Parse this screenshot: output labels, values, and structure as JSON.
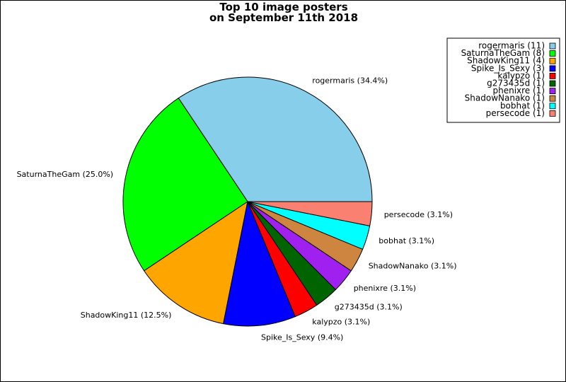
{
  "chart_data": {
    "type": "pie",
    "title": "Top 10 image posters",
    "subtitle": "on September 11th 2018",
    "legend_position": "top-right",
    "start_angle": "0 degrees (3 o'clock), counter-clockwise",
    "slices": [
      {
        "name": "rogermaris",
        "count": 11,
        "percent": 34.4,
        "color": "#87ceeb",
        "label": "rogermaris (34.4%)",
        "legend": "rogermaris (11)"
      },
      {
        "name": "SaturnaTheGam",
        "count": 8,
        "percent": 25.0,
        "color": "#00ff00",
        "label": "SaturnaTheGam (25.0%)",
        "legend": "SaturnaTheGam (8)"
      },
      {
        "name": "ShadowKing11",
        "count": 4,
        "percent": 12.5,
        "color": "#ffa500",
        "label": "ShadowKing11 (12.5%)",
        "legend": "ShadowKing11 (4)"
      },
      {
        "name": "Spike_Is_Sexy",
        "count": 3,
        "percent": 9.4,
        "color": "#0000ff",
        "label": "Spike_Is_Sexy (9.4%)",
        "legend": "Spike_Is_Sexy (3)"
      },
      {
        "name": "kalypzo",
        "count": 1,
        "percent": 3.1,
        "color": "#ff0000",
        "label": "kalypzo (3.1%)",
        "legend": "kalypzo (1)"
      },
      {
        "name": "g273435d",
        "count": 1,
        "percent": 3.1,
        "color": "#006400",
        "label": "g273435d (3.1%)",
        "legend": "g273435d (1)"
      },
      {
        "name": "phenixre",
        "count": 1,
        "percent": 3.1,
        "color": "#a020f0",
        "label": "phenixre (3.1%)",
        "legend": "phenixre (1)"
      },
      {
        "name": "ShadowNanako",
        "count": 1,
        "percent": 3.1,
        "color": "#cd853f",
        "label": "ShadowNanako (3.1%)",
        "legend": "ShadowNanako (1)"
      },
      {
        "name": "bobhat",
        "count": 1,
        "percent": 3.1,
        "color": "#00ffff",
        "label": "bobhat (3.1%)",
        "legend": "bobhat (1)"
      },
      {
        "name": "persecode",
        "count": 1,
        "percent": 3.1,
        "color": "#fa8072",
        "label": "persecode (3.1%)",
        "legend": "persecode (1)"
      }
    ]
  }
}
